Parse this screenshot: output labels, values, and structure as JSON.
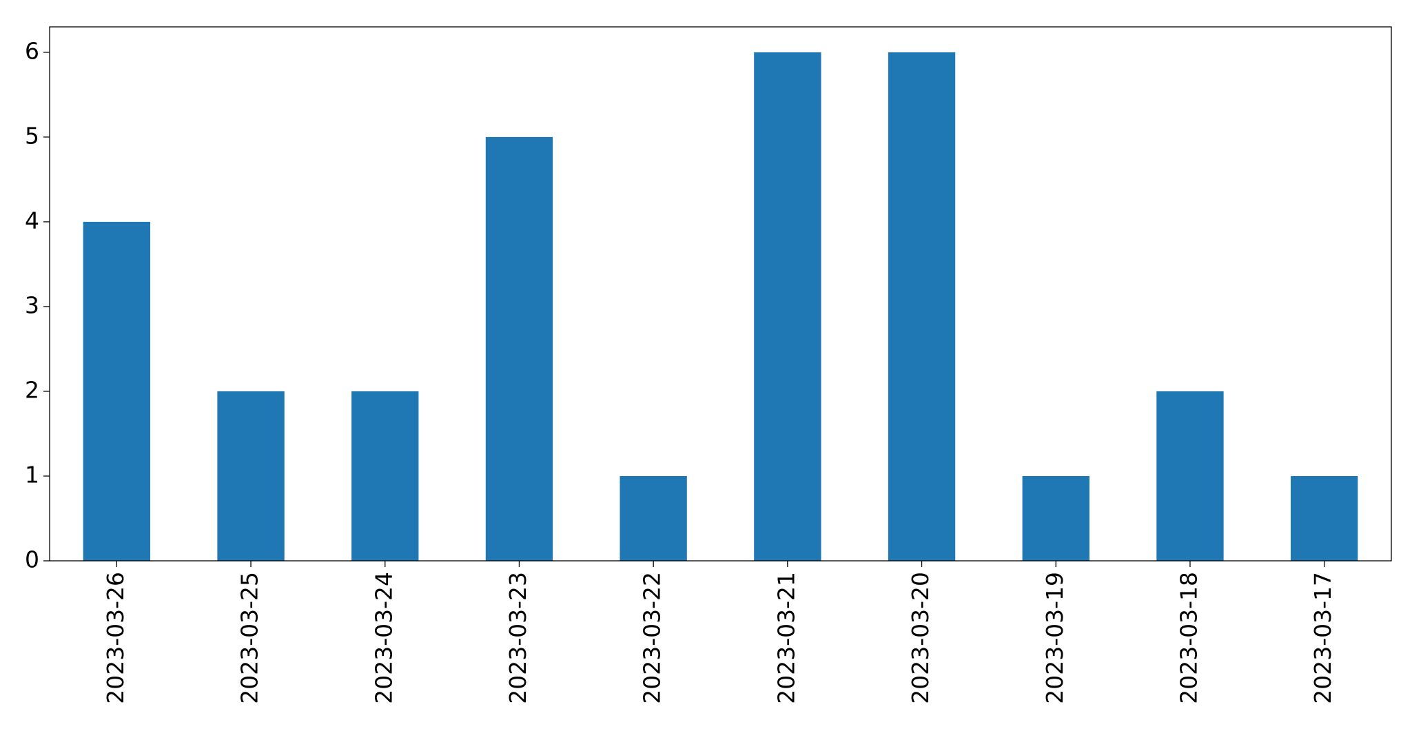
{
  "chart_data": {
    "type": "bar",
    "categories": [
      "2023-03-26",
      "2023-03-25",
      "2023-03-24",
      "2023-03-23",
      "2023-03-22",
      "2023-03-21",
      "2023-03-20",
      "2023-03-19",
      "2023-03-18",
      "2023-03-17"
    ],
    "values": [
      4,
      2,
      2,
      5,
      1,
      6,
      6,
      1,
      2,
      1
    ],
    "color": "#1f77b4",
    "ylim": [
      0,
      6.3
    ],
    "yticks": [
      0,
      1,
      2,
      3,
      4,
      5,
      6
    ],
    "grid": false
  }
}
